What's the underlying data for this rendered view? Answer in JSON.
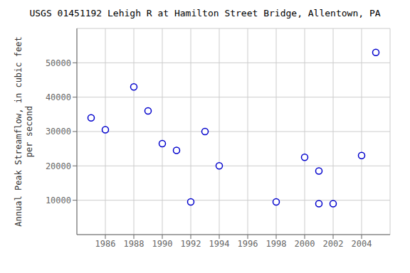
{
  "chart_data": {
    "type": "scatter",
    "title": "USGS 01451192 Lehigh R at Hamilton Street Bridge, Allentown, PA",
    "ylabel": "Annual Peak Streamflow, in cubic feet\nper second",
    "x": [
      1985,
      1986,
      1988,
      1989,
      1990,
      1991,
      1992,
      1993,
      1994,
      1998,
      2000,
      2001,
      2001,
      2002,
      2004,
      2005
    ],
    "values": [
      34000,
      30500,
      43000,
      36000,
      26500,
      24500,
      9500,
      30000,
      20000,
      9500,
      22500,
      18500,
      9000,
      9000,
      23000,
      53000
    ],
    "xlim": [
      1984.0,
      2006.0
    ],
    "ylim": [
      0,
      60000
    ],
    "xticks": [
      1986,
      1988,
      1990,
      1992,
      1994,
      1996,
      1998,
      2000,
      2002,
      2004
    ],
    "yticks": [
      10000,
      20000,
      30000,
      40000,
      50000
    ],
    "color": "#0000cc",
    "marker": "circle",
    "grid": true
  }
}
